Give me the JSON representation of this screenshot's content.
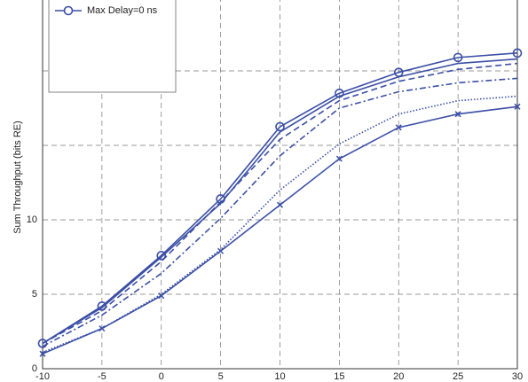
{
  "chart_data": {
    "type": "line",
    "y_label": "Sum Throughput (bits RE)",
    "x": [
      -10,
      -5,
      0,
      5,
      10,
      15,
      20,
      25,
      30
    ],
    "xlim": [
      -10,
      30
    ],
    "xticks": [
      -10,
      -5,
      0,
      5,
      10,
      15,
      20,
      25,
      30
    ],
    "ylim": [
      0,
      25
    ],
    "yticks": [
      0,
      5,
      10,
      {
        "value": 15,
        "label": null
      },
      {
        "value": 20,
        "label": null
      }
    ],
    "grid": true,
    "legend": "upper left",
    "series": [
      {
        "name": "Max Delay=0 ns",
        "color": "#3b4fa6",
        "style": "solid",
        "marker": "circle",
        "values": [
          1.7,
          4.2,
          7.6,
          11.4,
          16.25,
          18.5,
          19.9,
          20.9,
          21.2
        ]
      },
      {
        "color": "#3b4fa6",
        "style": "solid",
        "marker": "none",
        "values": [
          1.7,
          4.1,
          7.5,
          11.1,
          15.9,
          18.3,
          19.6,
          20.5,
          20.8
        ]
      },
      {
        "color": "#3b4fa6",
        "style": "dashed",
        "marker": "none",
        "values": [
          1.7,
          3.9,
          7.2,
          11.2,
          15.4,
          18.0,
          19.3,
          20.1,
          20.5
        ]
      },
      {
        "color": "#3b4fa6",
        "style": "dashdot",
        "marker": "none",
        "values": [
          1.5,
          3.6,
          6.4,
          10.1,
          14.3,
          17.5,
          18.6,
          19.2,
          19.5
        ]
      },
      {
        "color": "#3b4fa6",
        "style": "dotted",
        "marker": "none",
        "values": [
          1.1,
          2.7,
          5.0,
          8.0,
          12.0,
          15.1,
          17.1,
          18.0,
          18.3
        ]
      },
      {
        "color": "#3b4fa6",
        "style": "solid",
        "marker": "x",
        "values": [
          1.0,
          2.7,
          4.9,
          7.9,
          11.0,
          14.1,
          16.2,
          17.1,
          17.6
        ]
      }
    ]
  }
}
